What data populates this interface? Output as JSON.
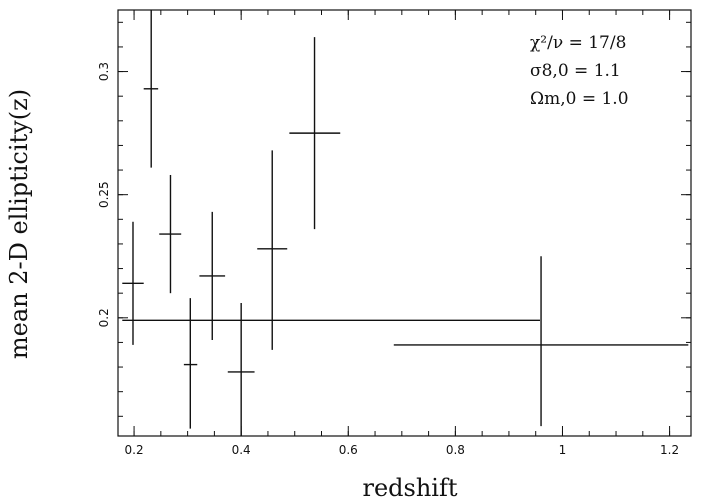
{
  "chart_data": {
    "type": "scatter",
    "xlabel": "redshift",
    "ylabel": "mean 2-D ellipticity(z)",
    "xlim": [
      0.17,
      1.24
    ],
    "ylim": [
      0.152,
      0.325
    ],
    "x_ticks": [
      {
        "value": 0.2,
        "label": "0.2"
      },
      {
        "value": 0.4,
        "label": "0.4"
      },
      {
        "value": 0.6,
        "label": "0.6"
      },
      {
        "value": 0.8,
        "label": "0.8"
      },
      {
        "value": 1.0,
        "label": "1"
      },
      {
        "value": 1.2,
        "label": "1.2"
      }
    ],
    "x_minor_step": 0.05,
    "y_ticks": [
      {
        "value": 0.2,
        "label": "0.2"
      },
      {
        "value": 0.25,
        "label": "0.25"
      },
      {
        "value": 0.3,
        "label": "0.3"
      }
    ],
    "y_minor_step": 0.01,
    "grid": false,
    "annotations": [
      "χ²/ν = 17/8",
      "σ8,0 = 1.1",
      "Ωm,0 = 1.0"
    ],
    "points": [
      {
        "x": 0.198,
        "y": 0.214,
        "xlo": 0.178,
        "xhi": 0.218,
        "ylo": 0.189,
        "yhi": 0.239
      },
      {
        "x": 0.232,
        "y": 0.293,
        "xlo": 0.218,
        "xhi": 0.245,
        "ylo": 0.261,
        "yhi": 0.325
      },
      {
        "x": 0.268,
        "y": 0.234,
        "xlo": 0.247,
        "xhi": 0.288,
        "ylo": 0.21,
        "yhi": 0.258
      },
      {
        "x": 0.305,
        "y": 0.181,
        "xlo": 0.293,
        "xhi": 0.318,
        "ylo": 0.155,
        "yhi": 0.208
      },
      {
        "x": 0.346,
        "y": 0.217,
        "xlo": 0.322,
        "xhi": 0.37,
        "ylo": 0.191,
        "yhi": 0.243
      },
      {
        "x": 0.4,
        "y": 0.178,
        "xlo": 0.375,
        "xhi": 0.425,
        "ylo": 0.152,
        "yhi": 0.206
      },
      {
        "x": 0.458,
        "y": 0.228,
        "xlo": 0.43,
        "xhi": 0.486,
        "ylo": 0.187,
        "yhi": 0.268
      },
      {
        "x": 0.537,
        "y": 0.275,
        "xlo": 0.49,
        "xhi": 0.585,
        "ylo": 0.236,
        "yhi": 0.314
      },
      {
        "x": 0.96,
        "y": 0.189,
        "xlo": 0.685,
        "xhi": 1.235,
        "ylo": 0.156,
        "yhi": 0.225
      }
    ],
    "reference_line": {
      "y": 0.199,
      "x_start": 0.178,
      "x_end": 0.958
    }
  }
}
